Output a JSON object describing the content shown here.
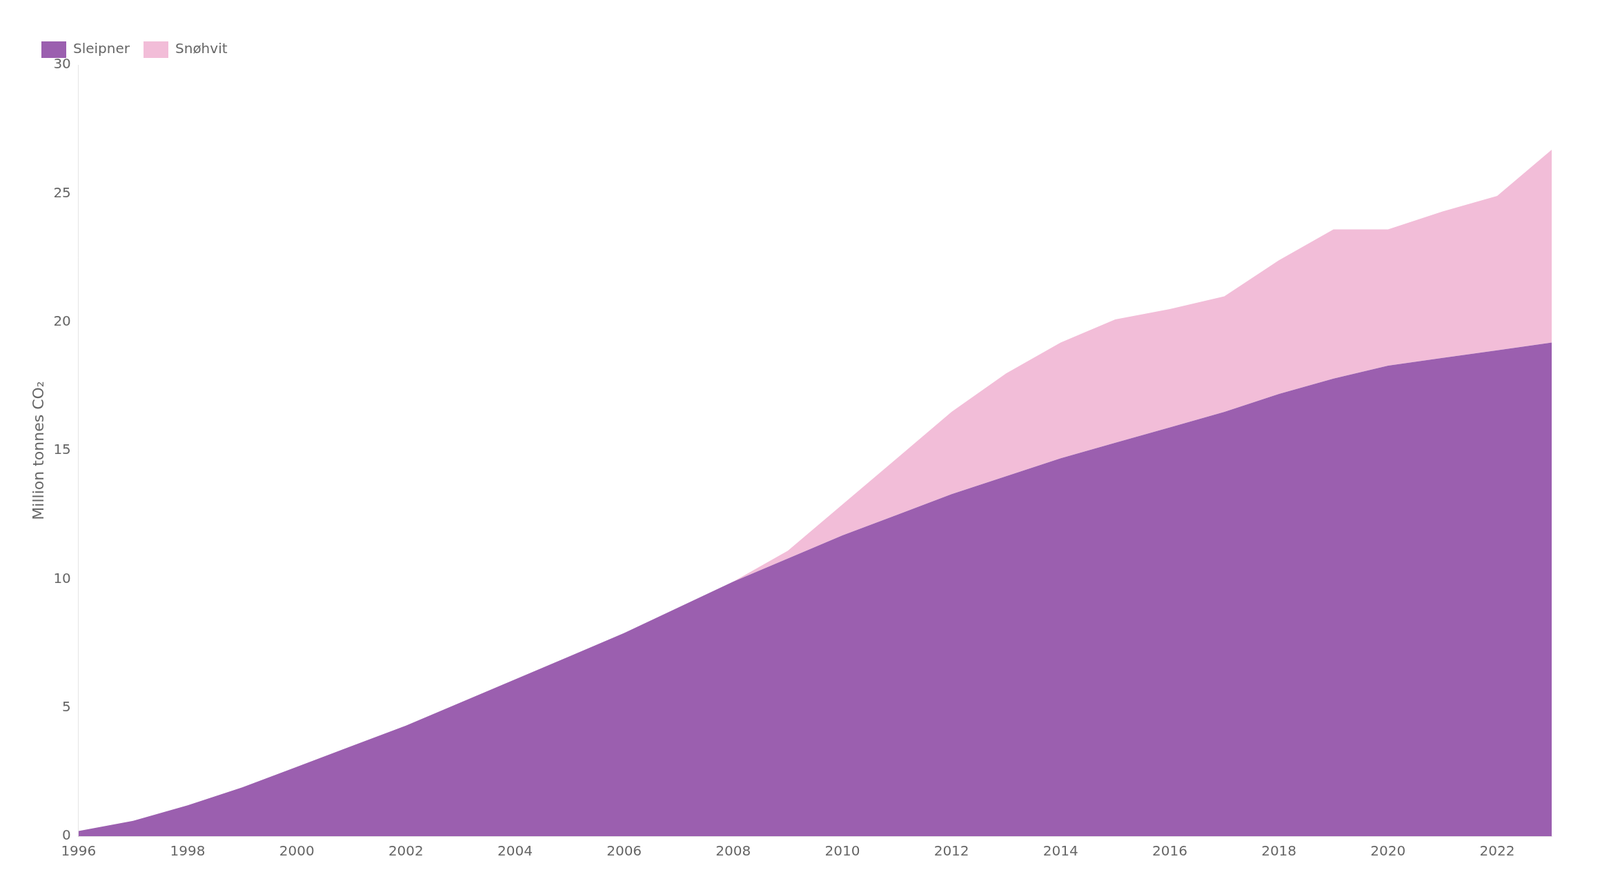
{
  "chart_data": {
    "type": "area",
    "stacked": true,
    "ylabel": "Million tonnes CO₂",
    "x": [
      1996,
      1997,
      1998,
      1999,
      2000,
      2001,
      2002,
      2003,
      2004,
      2005,
      2006,
      2007,
      2008,
      2009,
      2010,
      2011,
      2012,
      2013,
      2014,
      2015,
      2016,
      2017,
      2018,
      2019,
      2020,
      2021,
      2022,
      2023
    ],
    "series": [
      {
        "name": "Sleipner",
        "color": "#9B5FAF",
        "values": [
          0.2,
          0.6,
          1.2,
          1.9,
          2.7,
          3.5,
          4.3,
          5.2,
          6.1,
          7.0,
          7.9,
          8.9,
          9.9,
          10.8,
          11.7,
          12.5,
          13.3,
          14.0,
          14.7,
          15.3,
          15.9,
          16.5,
          17.2,
          17.8,
          18.3,
          18.6,
          18.9,
          19.2
        ]
      },
      {
        "name": "Snøhvit",
        "color": "#F2BDD8",
        "values": [
          0.0,
          0.0,
          0.0,
          0.0,
          0.0,
          0.0,
          0.0,
          0.0,
          0.0,
          0.0,
          0.0,
          0.0,
          0.0,
          0.3,
          1.2,
          2.2,
          3.2,
          4.0,
          4.5,
          4.8,
          4.6,
          4.5,
          5.2,
          5.8,
          5.3,
          5.7,
          6.0,
          7.5
        ]
      }
    ],
    "xlim": [
      1996,
      2023
    ],
    "xticks": [
      1996,
      1998,
      2000,
      2002,
      2004,
      2006,
      2008,
      2010,
      2012,
      2014,
      2016,
      2018,
      2020,
      2022
    ],
    "ylim": [
      0,
      30
    ],
    "yticks": [
      0,
      5,
      10,
      15,
      20,
      25,
      30
    ],
    "grid": false,
    "legend": "upper left"
  }
}
